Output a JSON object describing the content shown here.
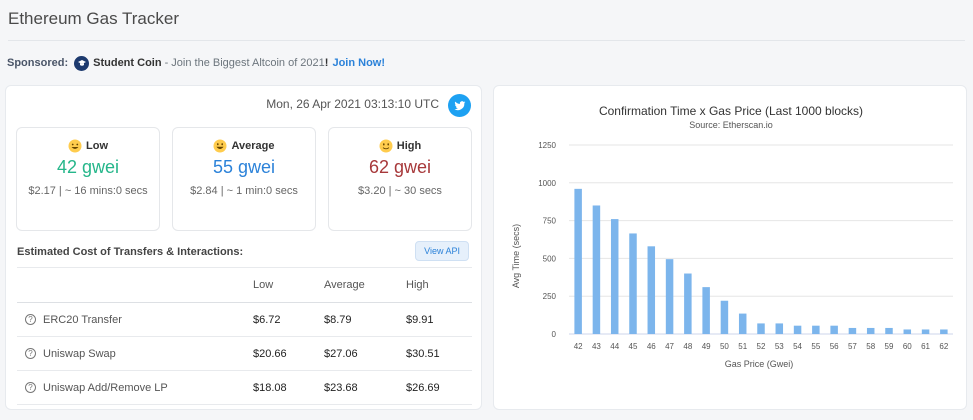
{
  "page": {
    "title": "Ethereum Gas Tracker"
  },
  "sponsor": {
    "label": "Sponsored:",
    "name": "Student Coin",
    "text": " - Join the Biggest Altcoin of 2021",
    "excl": "!",
    "cta": "Join Now!"
  },
  "gas": {
    "timestamp": "Mon, 26 Apr 2021 03:13:10 UTC",
    "low": {
      "label": "Low",
      "price": "42 gwei",
      "detail": "$2.17 | ~ 16 mins:0 secs",
      "color": "#25b68a"
    },
    "average": {
      "label": "Average",
      "price": "55 gwei",
      "detail": "$2.84 | ~ 1 min:0 secs",
      "color": "#2b82d9"
    },
    "high": {
      "label": "High",
      "price": "62 gwei",
      "detail": "$3.20 | ~ 30 secs",
      "color": "#a7383a"
    }
  },
  "costs": {
    "title": "Estimated Cost of Transfers & Interactions:",
    "view_api": "View API",
    "headers": [
      "",
      "Low",
      "Average",
      "High"
    ],
    "rows": [
      {
        "action": "ERC20 Transfer",
        "low": "$6.72",
        "avg": "$8.79",
        "high": "$9.91"
      },
      {
        "action": "Uniswap Swap",
        "low": "$20.66",
        "avg": "$27.06",
        "high": "$30.51"
      },
      {
        "action": "Uniswap Add/Remove LP",
        "low": "$18.08",
        "avg": "$23.68",
        "high": "$26.69"
      }
    ]
  },
  "chart_data": {
    "type": "bar",
    "title": "Confirmation Time x Gas Price (Last 1000 blocks)",
    "subtitle": "Source: Etherscan.io",
    "xlabel": "Gas Price (Gwei)",
    "ylabel": "Avg Time (secs)",
    "ylim": [
      0,
      1250
    ],
    "yticks": [
      0,
      250,
      500,
      750,
      1000,
      1250
    ],
    "grid": true,
    "bar_color": "#7cb5ec",
    "categories": [
      "42",
      "43",
      "44",
      "45",
      "46",
      "47",
      "48",
      "49",
      "50",
      "51",
      "52",
      "53",
      "54",
      "55",
      "56",
      "57",
      "58",
      "59",
      "60",
      "61",
      "62"
    ],
    "values": [
      960,
      850,
      760,
      665,
      580,
      495,
      400,
      310,
      220,
      135,
      70,
      70,
      55,
      55,
      55,
      40,
      40,
      40,
      30,
      30,
      30
    ]
  }
}
